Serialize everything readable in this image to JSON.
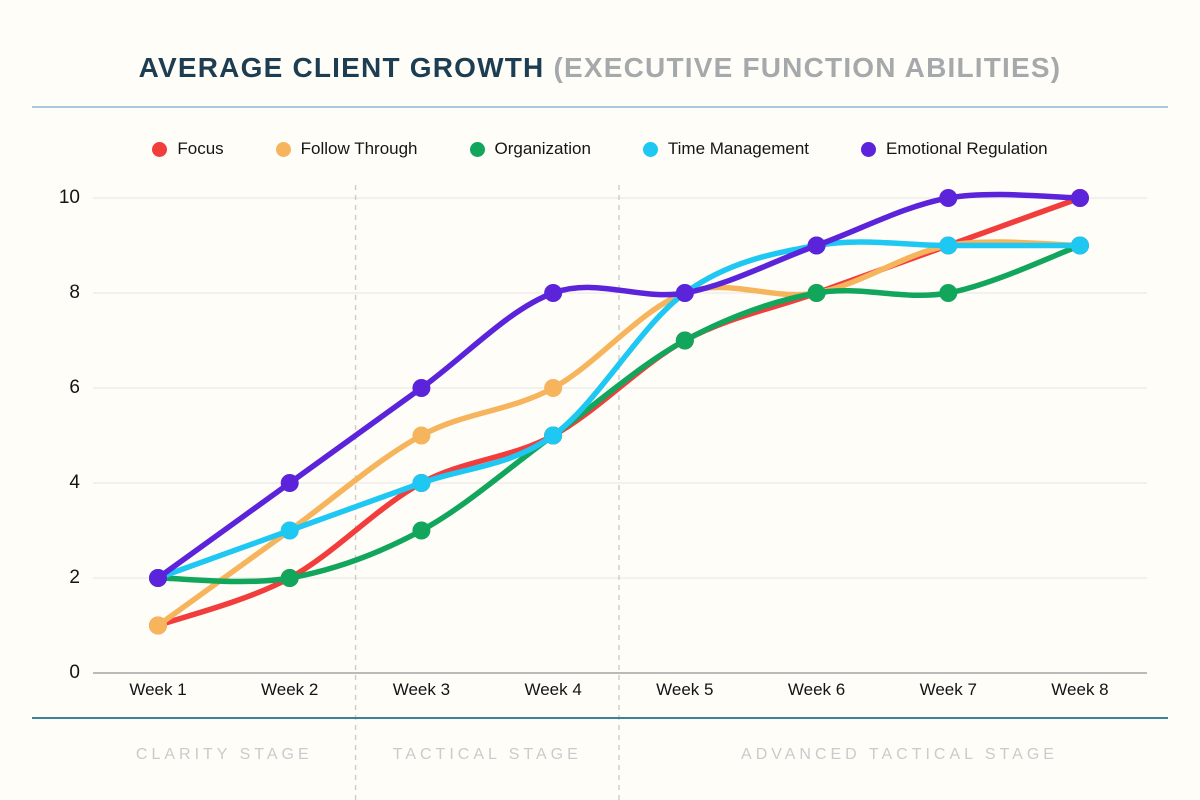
{
  "title": {
    "main": "AVERAGE CLIENT GROWTH",
    "paren": "(EXECUTIVE FUNCTION ABILITIES)"
  },
  "chart_data": {
    "type": "line",
    "x": [
      "Week 1",
      "Week 2",
      "Week 3",
      "Week 4",
      "Week 5",
      "Week 6",
      "Week 7",
      "Week 8"
    ],
    "series": [
      {
        "name": "Focus",
        "color": "#f23d3d",
        "values": [
          1,
          2,
          4,
          5,
          7,
          8,
          9,
          10
        ]
      },
      {
        "name": "Follow Through",
        "color": "#f6b55c",
        "values": [
          1,
          3,
          5,
          6,
          8,
          8,
          9,
          9
        ]
      },
      {
        "name": "Organization",
        "color": "#11a65c",
        "values": [
          2,
          2,
          3,
          5,
          7,
          8,
          8,
          9
        ]
      },
      {
        "name": "Time Management",
        "color": "#1fc8f2",
        "values": [
          2,
          3,
          4,
          5,
          8,
          9,
          9,
          9
        ]
      },
      {
        "name": "Emotional Regulation",
        "color": "#5b23da",
        "values": [
          2,
          4,
          6,
          8,
          8,
          9,
          10,
          10
        ]
      }
    ],
    "ylim": [
      0,
      10
    ],
    "yticks": [
      0,
      2,
      4,
      6,
      8,
      10
    ],
    "grid": "horizontal",
    "legend_position": "top",
    "marker": "circle",
    "line_style": "smooth"
  },
  "stages": [
    {
      "label": "CLARITY STAGE",
      "weeks": [
        1,
        2
      ]
    },
    {
      "label": "TACTICAL STAGE",
      "weeks": [
        3,
        4
      ]
    },
    {
      "label": "ADVANCED TACTICAL STAGE",
      "weeks": [
        5,
        8
      ]
    }
  ],
  "colors": {
    "title_main": "#1d3d52",
    "title_paren": "#a6a9ab",
    "rule_top": "#abc8de",
    "rule_bottom": "#3d8398",
    "stage_text": "#c9cbcc",
    "grid_line": "#e5e5e5",
    "axis_line": "#a3a3a3",
    "stage_separator": "#cfcfcf"
  }
}
